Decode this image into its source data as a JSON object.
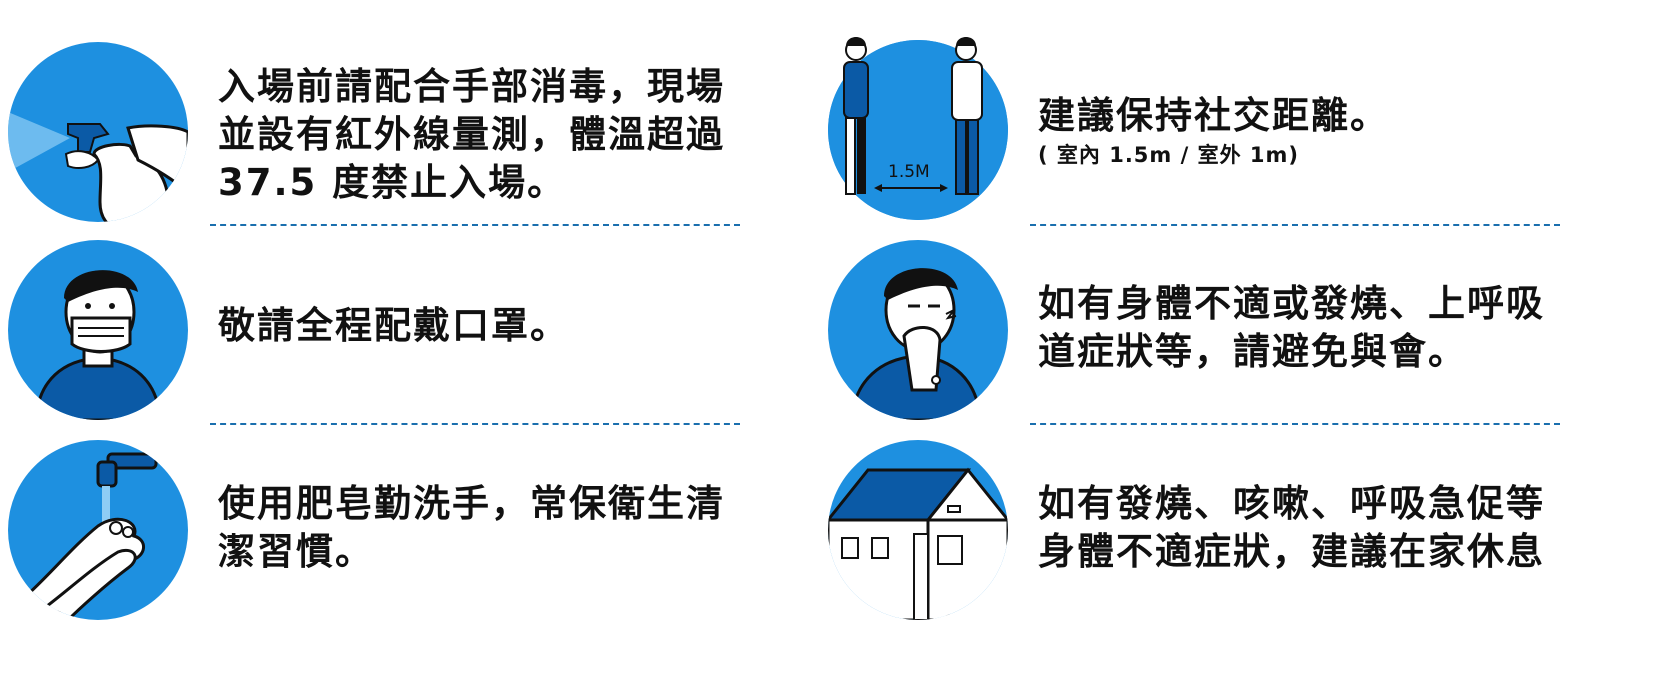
{
  "colors": {
    "circle": "#1e90e0",
    "circle_dark": "#0b5aa6",
    "text": "#111111",
    "divider": "#1a6fae"
  },
  "left": {
    "items": [
      {
        "icon": "spray-bottle-icon",
        "lines": [
          "入場前請配合手部消毒，現場",
          "並設有紅外線量測，體溫超過",
          "37.5 度禁止入場。"
        ]
      },
      {
        "icon": "face-mask-icon",
        "lines": [
          "敬請全程配戴口罩。"
        ]
      },
      {
        "icon": "hand-washing-icon",
        "lines": [
          "使用肥皂勤洗手，常保衛生清",
          "潔習慣。"
        ]
      }
    ]
  },
  "right": {
    "items": [
      {
        "icon": "social-distance-icon",
        "distance_label": "1.5M",
        "lines": [
          "建議保持社交距離。"
        ],
        "sub": "( 室內 1.5m / 室外 1m)"
      },
      {
        "icon": "sneezing-person-icon",
        "lines": [
          "如有身體不適或發燒、上呼吸",
          "道症狀等，請避免與會。"
        ]
      },
      {
        "icon": "house-icon",
        "lines": [
          "如有發燒、咳嗽、呼吸急促等",
          "身體不適症狀，建議在家休息"
        ]
      }
    ]
  }
}
